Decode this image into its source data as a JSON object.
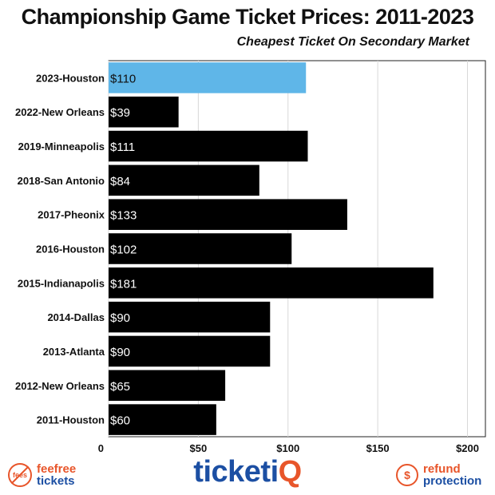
{
  "chart_data": {
    "type": "bar",
    "orientation": "horizontal",
    "title": "Championship Game Ticket Prices: 2011-2023",
    "subtitle": "Cheapest Ticket On Secondary Market",
    "categories": [
      "2023-Houston",
      "2022-New Orleans",
      "2019-Minneapolis",
      "2018-San Antonio",
      "2017-Pheonix",
      "2016-Houston",
      "2015-Indianapolis",
      "2014-Dallas",
      "2013-Atlanta",
      "2012-New Orleans",
      "2011-Houston"
    ],
    "values": [
      110,
      39,
      111,
      84,
      133,
      102,
      181,
      90,
      90,
      65,
      60
    ],
    "data_labels": [
      "$110",
      "$39",
      "$111",
      "$84",
      "$133",
      "$102",
      "$181",
      "$90",
      "$90",
      "$65",
      "$60"
    ],
    "xlim": [
      0,
      210
    ],
    "xticks": [
      0,
      50,
      100,
      150,
      200
    ],
    "xtick_labels": [
      "0",
      "$50",
      "$100",
      "$150",
      "$200"
    ],
    "grid": "vertical",
    "colors": {
      "highlight": "#5fb6e8",
      "default": "#000000"
    },
    "highlight_index": 0
  },
  "footer": {
    "left_icon_text": "fees",
    "left_line1": "feefree",
    "left_line2": "tickets",
    "center_a": "ticketi",
    "center_b": "Q",
    "right_icon_text": "$",
    "right_line1": "refund",
    "right_line2": "protection"
  }
}
